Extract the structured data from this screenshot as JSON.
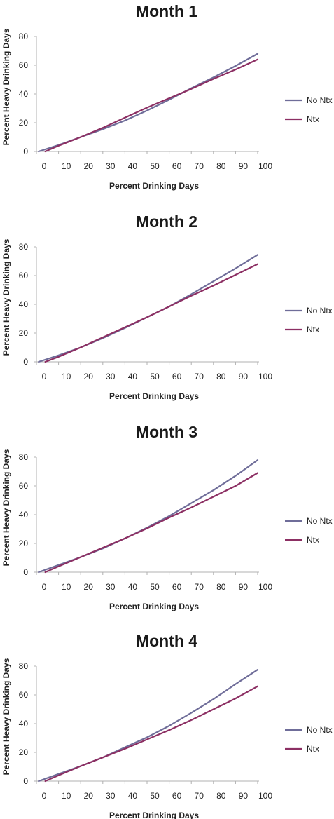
{
  "colors": {
    "no_ntx": "#6f6d99",
    "ntx": "#8c2f63",
    "axis": "#b0b0b0"
  },
  "chart_data": [
    {
      "type": "line",
      "title": "Month 1",
      "xlabel": "Percent Drinking Days",
      "ylabel": "Percent Heavy Drinking Days",
      "x_ticks": [
        0,
        10,
        20,
        30,
        40,
        50,
        60,
        70,
        80,
        90,
        100
      ],
      "y_ticks": [
        0,
        20,
        40,
        60,
        80
      ],
      "xlim": [
        0,
        100
      ],
      "ylim": [
        0,
        80
      ],
      "legend_position": "right",
      "series": [
        {
          "name": "No Ntx",
          "color": "#6f6d99",
          "x": [
            1,
            10,
            20,
            30,
            40,
            50,
            60,
            70,
            80,
            90,
            100
          ],
          "y": [
            0,
            4.5,
            10,
            15.5,
            21.5,
            28.5,
            36,
            44,
            51.5,
            59.5,
            68
          ]
        },
        {
          "name": "Ntx",
          "color": "#8c2f63",
          "x": [
            4,
            10,
            20,
            30,
            40,
            50,
            60,
            70,
            80,
            90,
            100
          ],
          "y": [
            0,
            4,
            10,
            16.5,
            23.5,
            30.5,
            37,
            43.5,
            50.5,
            57,
            64
          ]
        }
      ]
    },
    {
      "type": "line",
      "title": "Month 2",
      "xlabel": "Percent Drinking Days",
      "ylabel": "Percent Heavy Drinking Days",
      "x_ticks": [
        0,
        10,
        20,
        30,
        40,
        50,
        60,
        70,
        80,
        90,
        100
      ],
      "y_ticks": [
        0,
        20,
        40,
        60,
        80
      ],
      "xlim": [
        0,
        100
      ],
      "ylim": [
        0,
        80
      ],
      "legend_position": "right",
      "series": [
        {
          "name": "No Ntx",
          "color": "#6f6d99",
          "x": [
            1,
            10,
            20,
            30,
            40,
            50,
            60,
            70,
            80,
            90,
            100
          ],
          "y": [
            0,
            4.5,
            10,
            16.5,
            23.5,
            31,
            38.5,
            47,
            56,
            65,
            74.5
          ]
        },
        {
          "name": "Ntx",
          "color": "#8c2f63",
          "x": [
            4,
            10,
            20,
            30,
            40,
            50,
            60,
            70,
            80,
            90,
            100
          ],
          "y": [
            0,
            3.5,
            10,
            17,
            24,
            31,
            38.5,
            46,
            53,
            60.5,
            68
          ]
        }
      ]
    },
    {
      "type": "line",
      "title": "Month 3",
      "xlabel": "Percent Drinking Days",
      "ylabel": "Percent Heavy Drinking Days",
      "x_ticks": [
        0,
        10,
        20,
        30,
        40,
        50,
        60,
        70,
        80,
        90,
        100
      ],
      "y_ticks": [
        0,
        20,
        40,
        60,
        80
      ],
      "xlim": [
        0,
        100
      ],
      "ylim": [
        0,
        80
      ],
      "legend_position": "right",
      "series": [
        {
          "name": "No Ntx",
          "color": "#6f6d99",
          "x": [
            1,
            10,
            20,
            30,
            40,
            50,
            60,
            70,
            80,
            90,
            100
          ],
          "y": [
            0,
            5,
            10.5,
            16.5,
            23.5,
            31,
            39,
            48,
            57,
            67,
            78
          ]
        },
        {
          "name": "Ntx",
          "color": "#8c2f63",
          "x": [
            4,
            10,
            20,
            30,
            40,
            50,
            60,
            70,
            80,
            90,
            100
          ],
          "y": [
            0,
            4,
            10.5,
            17,
            23.5,
            30.5,
            38,
            45,
            52.5,
            60,
            69
          ]
        }
      ]
    },
    {
      "type": "line",
      "title": "Month 4",
      "xlabel": "Percent Drinking Days",
      "ylabel": "Percent Heavy Drinking Days",
      "x_ticks": [
        0,
        10,
        20,
        30,
        40,
        50,
        60,
        70,
        80,
        90,
        100
      ],
      "y_ticks": [
        0,
        20,
        40,
        60,
        80
      ],
      "xlim": [
        0,
        100
      ],
      "ylim": [
        0,
        80
      ],
      "legend_position": "right",
      "series": [
        {
          "name": "No Ntx",
          "color": "#6f6d99",
          "x": [
            1,
            10,
            20,
            30,
            40,
            50,
            60,
            70,
            80,
            90,
            100
          ],
          "y": [
            0,
            5,
            10.5,
            16.5,
            23.5,
            30.5,
            38.5,
            47.5,
            57,
            67.5,
            77.5
          ]
        },
        {
          "name": "Ntx",
          "color": "#8c2f63",
          "x": [
            4,
            10,
            20,
            30,
            40,
            50,
            60,
            70,
            80,
            90,
            100
          ],
          "y": [
            0,
            4,
            10.5,
            16.5,
            22.5,
            29,
            35.5,
            42.5,
            50,
            57.5,
            66
          ]
        }
      ]
    }
  ]
}
